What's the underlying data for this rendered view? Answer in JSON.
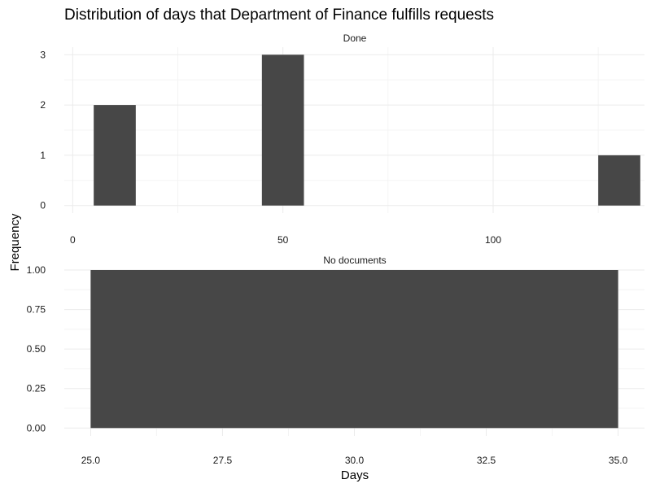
{
  "chart_data": {
    "type": "bar",
    "title": "Distribution of days that Department of Finance fulfills requests",
    "xlabel": "Days",
    "ylabel": "Frequency",
    "facets": [
      {
        "name": "Done",
        "xlim": [
          -2,
          136
        ],
        "ylim": [
          -0.15,
          3.15
        ],
        "x_ticks": [
          0,
          50,
          100
        ],
        "x_tick_labels": [
          "0",
          "50",
          "100"
        ],
        "y_ticks": [
          0,
          1,
          2,
          3
        ],
        "y_tick_labels": [
          "0",
          "1",
          "2",
          "3"
        ],
        "bins": [
          {
            "x_start": 5,
            "x_end": 15,
            "count": 2
          },
          {
            "x_start": 45,
            "x_end": 55,
            "count": 3
          },
          {
            "x_start": 125,
            "x_end": 135,
            "count": 1
          }
        ]
      },
      {
        "name": "No documents",
        "xlim": [
          24.5,
          35.5
        ],
        "ylim": [
          -0.05,
          1.0
        ],
        "x_ticks": [
          25,
          27.5,
          30,
          32.5,
          35
        ],
        "x_tick_labels": [
          "25.0",
          "27.5",
          "30.0",
          "32.5",
          "35.0"
        ],
        "y_ticks": [
          0,
          0.25,
          0.5,
          0.75,
          1.0
        ],
        "y_tick_labels": [
          "0.00",
          "0.25",
          "0.50",
          "0.75",
          "1.00"
        ],
        "bins": [
          {
            "x_start": 25,
            "x_end": 35,
            "count": 1
          }
        ]
      }
    ],
    "grid": true,
    "legend": "none"
  }
}
